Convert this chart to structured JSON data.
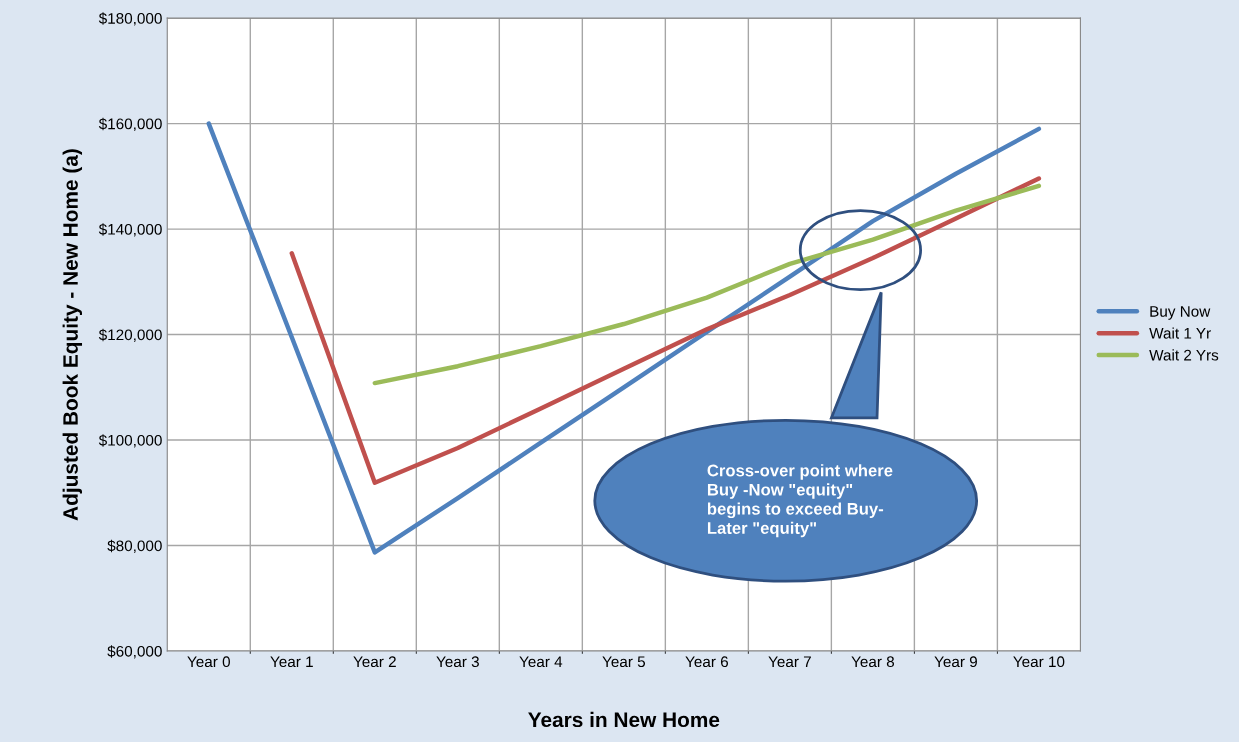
{
  "chart_data": {
    "type": "line",
    "xlabel": "Years in New Home",
    "ylabel": "Adjusted Book Equity - New Home (a)",
    "categories": [
      "Year 0",
      "Year 1",
      "Year 2",
      "Year 3",
      "Year 4",
      "Year 5",
      "Year 6",
      "Year 7",
      "Year 8",
      "Year 9",
      "Year 10"
    ],
    "series": [
      {
        "name": "Buy Now",
        "color": "#4f81bd",
        "values": [
          160000,
          119500,
          78700,
          89000,
          99500,
          110000,
          120500,
          131000,
          141500,
          150500,
          159000
        ]
      },
      {
        "name": "Wait 1 Yr",
        "color": "#c0504d",
        "values": [
          null,
          135400,
          91900,
          98500,
          106000,
          113500,
          121000,
          127500,
          134500,
          142000,
          149600
        ]
      },
      {
        "name": "Wait 2 Yrs",
        "color": "#9bbb59",
        "values": [
          null,
          null,
          110800,
          114000,
          117800,
          122000,
          127000,
          133400,
          138000,
          143500,
          148200
        ]
      }
    ],
    "ylim": [
      60000,
      180000
    ],
    "yticks": [
      {
        "value": 60000,
        "label": "$60,000"
      },
      {
        "value": 80000,
        "label": "$80,000"
      },
      {
        "value": 100000,
        "label": "$100,000"
      },
      {
        "value": 120000,
        "label": "$120,000"
      },
      {
        "value": 140000,
        "label": "$140,000"
      },
      {
        "value": 160000,
        "label": "$160,000"
      },
      {
        "value": 180000,
        "label": "$180,000"
      }
    ],
    "grid": true,
    "legend": "right",
    "marker": "none",
    "line_style": "solid",
    "annotations": [
      "Cross-over point where\nBuy -Now \"equity\"\nbegins to exceed Buy-\nLater \"equity\""
    ]
  }
}
